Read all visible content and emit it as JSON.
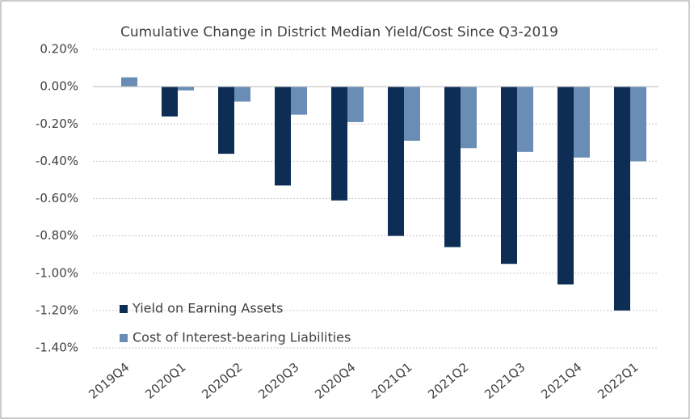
{
  "chart_data": {
    "type": "bar",
    "title": "Cumulative Change in District Median Yield/Cost Since Q3-2019",
    "categories": [
      "2019Q4",
      "2020Q1",
      "2020Q2",
      "2020Q3",
      "2020Q4",
      "2021Q1",
      "2021Q2",
      "2021Q3",
      "2021Q4",
      "2022Q1"
    ],
    "series": [
      {
        "name": "Yield on Earning Assets",
        "color": "#0d2d54",
        "values": [
          0,
          -0.16,
          -0.36,
          -0.53,
          -0.61,
          -0.8,
          -0.86,
          -0.95,
          -1.06,
          -1.2
        ]
      },
      {
        "name": "Cost of Interest-bearing Liabilities",
        "color": "#6a8db5",
        "values": [
          0.05,
          -0.02,
          -0.08,
          -0.15,
          -0.19,
          -0.29,
          -0.33,
          -0.35,
          -0.38,
          -0.4
        ]
      }
    ],
    "ylim": [
      -1.4,
      0.2
    ],
    "yticks": [
      {
        "value": 0.2,
        "label": "0.20%"
      },
      {
        "value": 0,
        "label": "0.00%"
      },
      {
        "value": -0.2,
        "label": "-0.20%"
      },
      {
        "value": -0.4,
        "label": "-0.40%"
      },
      {
        "value": -0.6,
        "label": "-0.60%"
      },
      {
        "value": -0.8,
        "label": "-0.80%"
      },
      {
        "value": -1.0,
        "label": "-1.00%"
      },
      {
        "value": -1.2,
        "label": "-1.20%"
      },
      {
        "value": -1.4,
        "label": "-1.40%"
      }
    ],
    "grid": true
  }
}
